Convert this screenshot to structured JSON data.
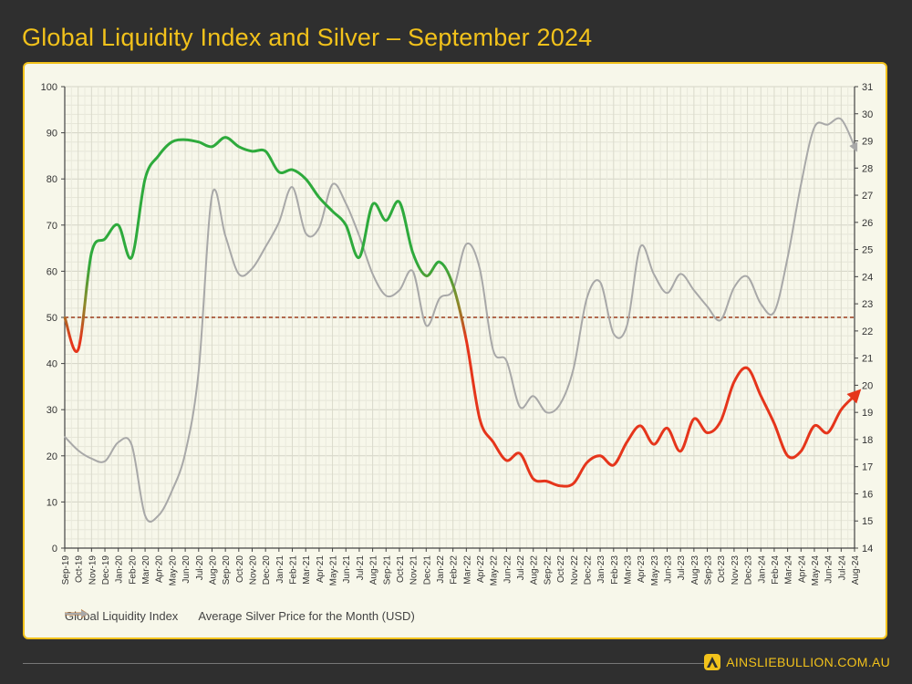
{
  "header": {
    "title": "Global Liquidity Index and Silver – September 2024"
  },
  "footer": {
    "brand": "AINSLIEBULLION.COM.AU"
  },
  "colors": {
    "accent": "#f2c21b",
    "background": "#2f2f2f",
    "panel": "#f7f7ea",
    "green": "#2eaa3c",
    "red": "#e5351b",
    "silver": "#a8a8a8",
    "reference": "#9b3b1b",
    "legend_gli": "#c07a3a"
  },
  "chart_data": {
    "type": "line",
    "title": "Global Liquidity Index and Silver – September 2024",
    "categories": [
      "Sep-19",
      "Oct-19",
      "Nov-19",
      "Dec-19",
      "Jan-20",
      "Feb-20",
      "Mar-20",
      "Apr-20",
      "May-20",
      "Jun-20",
      "Jul-20",
      "Aug-20",
      "Sep-20",
      "Oct-20",
      "Nov-20",
      "Dec-20",
      "Jan-21",
      "Feb-21",
      "Mar-21",
      "Apr-21",
      "May-21",
      "Jun-21",
      "Jul-21",
      "Aug-21",
      "Sep-21",
      "Oct-21",
      "Nov-21",
      "Dec-21",
      "Jan-22",
      "Feb-22",
      "Mar-22",
      "Apr-22",
      "May-22",
      "Jun-22",
      "Jul-22",
      "Aug-22",
      "Sep-22",
      "Oct-22",
      "Nov-22",
      "Dec-22",
      "Jan-23",
      "Feb-23",
      "Mar-23",
      "Apr-23",
      "May-23",
      "Jun-23",
      "Jul-23",
      "Aug-23",
      "Sep-23",
      "Oct-23",
      "Nov-23",
      "Dec-23",
      "Jan-24",
      "Feb-24",
      "Mar-24",
      "Apr-24",
      "May-24",
      "Jun-24",
      "Jul-24",
      "Aug-24"
    ],
    "y_left": {
      "min": 0,
      "max": 100,
      "ticks": [
        "0",
        "10",
        "20",
        "30",
        "40",
        "50",
        "60",
        "70",
        "80",
        "90",
        "100"
      ]
    },
    "y_right": {
      "min": 14,
      "max": 31,
      "ticks": [
        "14",
        "15",
        "16",
        "17",
        "18",
        "19",
        "20",
        "21",
        "22",
        "23",
        "24",
        "25",
        "26",
        "27",
        "28",
        "29",
        "30",
        "31"
      ]
    },
    "reference_line": {
      "axis": "left",
      "value": 50
    },
    "grid": true,
    "legend_position": "bottom-left",
    "series": [
      {
        "name": "Global Liquidity Index",
        "axis": "left",
        "style": "colored above/below 50 (green above, red below)",
        "values": [
          50,
          43,
          64,
          67,
          70,
          63,
          80,
          85,
          88,
          88.5,
          88,
          87,
          89,
          87,
          86,
          86,
          81.5,
          82,
          80,
          76,
          73,
          70,
          63,
          74.5,
          71,
          75,
          64,
          59,
          62,
          57,
          45,
          28,
          23,
          19,
          20.5,
          15,
          14.5,
          13.5,
          14,
          18.5,
          20,
          18,
          23,
          26.5,
          22.5,
          26,
          21,
          28,
          25,
          27.5,
          36,
          39,
          33,
          27,
          20,
          21,
          26.5,
          25,
          30,
          33
        ]
      },
      {
        "name": "Average Silver Price for the Month (USD)",
        "axis": "right",
        "style": "grey",
        "values": [
          18.1,
          17.6,
          17.3,
          17.2,
          17.9,
          17.8,
          15.2,
          15.2,
          16.1,
          17.5,
          20.5,
          27,
          25.5,
          24.1,
          24.3,
          25.1,
          26,
          27.3,
          25.6,
          25.8,
          27.4,
          26.7,
          25.5,
          24.1,
          23.3,
          23.5,
          24.2,
          22.2,
          23.2,
          23.5,
          25.2,
          24.3,
          21.3,
          20.9,
          19.2,
          19.6,
          19,
          19.3,
          20.6,
          23.2,
          23.8,
          21.9,
          22.2,
          25.1,
          24.1,
          23.4,
          24.1,
          23.5,
          22.9,
          22.4,
          23.6,
          24,
          23,
          22.7,
          24.7,
          27.4,
          29.5,
          29.6,
          29.8,
          28.8
        ]
      }
    ]
  }
}
